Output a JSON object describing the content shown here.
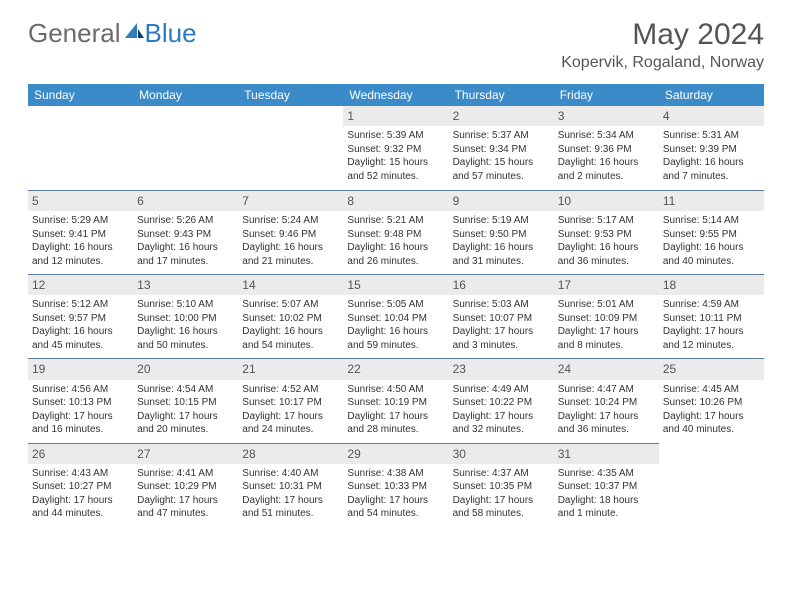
{
  "brand": {
    "word1": "General",
    "word2": "Blue"
  },
  "title": "May 2024",
  "location": "Kopervik, Rogaland, Norway",
  "colors": {
    "header_bg": "#3b8bc9",
    "header_text": "#ffffff",
    "daynum_bg": "#ebebeb",
    "rule": "#5a7ca0",
    "brand_grey": "#6b6b6b",
    "brand_blue": "#2b7cc0"
  },
  "weekdays": [
    "Sunday",
    "Monday",
    "Tuesday",
    "Wednesday",
    "Thursday",
    "Friday",
    "Saturday"
  ],
  "weeks": [
    [
      {
        "n": "",
        "sunrise": "",
        "sunset": "",
        "daylight": ""
      },
      {
        "n": "",
        "sunrise": "",
        "sunset": "",
        "daylight": ""
      },
      {
        "n": "",
        "sunrise": "",
        "sunset": "",
        "daylight": ""
      },
      {
        "n": "1",
        "sunrise": "Sunrise: 5:39 AM",
        "sunset": "Sunset: 9:32 PM",
        "daylight": "Daylight: 15 hours and 52 minutes."
      },
      {
        "n": "2",
        "sunrise": "Sunrise: 5:37 AM",
        "sunset": "Sunset: 9:34 PM",
        "daylight": "Daylight: 15 hours and 57 minutes."
      },
      {
        "n": "3",
        "sunrise": "Sunrise: 5:34 AM",
        "sunset": "Sunset: 9:36 PM",
        "daylight": "Daylight: 16 hours and 2 minutes."
      },
      {
        "n": "4",
        "sunrise": "Sunrise: 5:31 AM",
        "sunset": "Sunset: 9:39 PM",
        "daylight": "Daylight: 16 hours and 7 minutes."
      }
    ],
    [
      {
        "n": "5",
        "sunrise": "Sunrise: 5:29 AM",
        "sunset": "Sunset: 9:41 PM",
        "daylight": "Daylight: 16 hours and 12 minutes."
      },
      {
        "n": "6",
        "sunrise": "Sunrise: 5:26 AM",
        "sunset": "Sunset: 9:43 PM",
        "daylight": "Daylight: 16 hours and 17 minutes."
      },
      {
        "n": "7",
        "sunrise": "Sunrise: 5:24 AM",
        "sunset": "Sunset: 9:46 PM",
        "daylight": "Daylight: 16 hours and 21 minutes."
      },
      {
        "n": "8",
        "sunrise": "Sunrise: 5:21 AM",
        "sunset": "Sunset: 9:48 PM",
        "daylight": "Daylight: 16 hours and 26 minutes."
      },
      {
        "n": "9",
        "sunrise": "Sunrise: 5:19 AM",
        "sunset": "Sunset: 9:50 PM",
        "daylight": "Daylight: 16 hours and 31 minutes."
      },
      {
        "n": "10",
        "sunrise": "Sunrise: 5:17 AM",
        "sunset": "Sunset: 9:53 PM",
        "daylight": "Daylight: 16 hours and 36 minutes."
      },
      {
        "n": "11",
        "sunrise": "Sunrise: 5:14 AM",
        "sunset": "Sunset: 9:55 PM",
        "daylight": "Daylight: 16 hours and 40 minutes."
      }
    ],
    [
      {
        "n": "12",
        "sunrise": "Sunrise: 5:12 AM",
        "sunset": "Sunset: 9:57 PM",
        "daylight": "Daylight: 16 hours and 45 minutes."
      },
      {
        "n": "13",
        "sunrise": "Sunrise: 5:10 AM",
        "sunset": "Sunset: 10:00 PM",
        "daylight": "Daylight: 16 hours and 50 minutes."
      },
      {
        "n": "14",
        "sunrise": "Sunrise: 5:07 AM",
        "sunset": "Sunset: 10:02 PM",
        "daylight": "Daylight: 16 hours and 54 minutes."
      },
      {
        "n": "15",
        "sunrise": "Sunrise: 5:05 AM",
        "sunset": "Sunset: 10:04 PM",
        "daylight": "Daylight: 16 hours and 59 minutes."
      },
      {
        "n": "16",
        "sunrise": "Sunrise: 5:03 AM",
        "sunset": "Sunset: 10:07 PM",
        "daylight": "Daylight: 17 hours and 3 minutes."
      },
      {
        "n": "17",
        "sunrise": "Sunrise: 5:01 AM",
        "sunset": "Sunset: 10:09 PM",
        "daylight": "Daylight: 17 hours and 8 minutes."
      },
      {
        "n": "18",
        "sunrise": "Sunrise: 4:59 AM",
        "sunset": "Sunset: 10:11 PM",
        "daylight": "Daylight: 17 hours and 12 minutes."
      }
    ],
    [
      {
        "n": "19",
        "sunrise": "Sunrise: 4:56 AM",
        "sunset": "Sunset: 10:13 PM",
        "daylight": "Daylight: 17 hours and 16 minutes."
      },
      {
        "n": "20",
        "sunrise": "Sunrise: 4:54 AM",
        "sunset": "Sunset: 10:15 PM",
        "daylight": "Daylight: 17 hours and 20 minutes."
      },
      {
        "n": "21",
        "sunrise": "Sunrise: 4:52 AM",
        "sunset": "Sunset: 10:17 PM",
        "daylight": "Daylight: 17 hours and 24 minutes."
      },
      {
        "n": "22",
        "sunrise": "Sunrise: 4:50 AM",
        "sunset": "Sunset: 10:19 PM",
        "daylight": "Daylight: 17 hours and 28 minutes."
      },
      {
        "n": "23",
        "sunrise": "Sunrise: 4:49 AM",
        "sunset": "Sunset: 10:22 PM",
        "daylight": "Daylight: 17 hours and 32 minutes."
      },
      {
        "n": "24",
        "sunrise": "Sunrise: 4:47 AM",
        "sunset": "Sunset: 10:24 PM",
        "daylight": "Daylight: 17 hours and 36 minutes."
      },
      {
        "n": "25",
        "sunrise": "Sunrise: 4:45 AM",
        "sunset": "Sunset: 10:26 PM",
        "daylight": "Daylight: 17 hours and 40 minutes."
      }
    ],
    [
      {
        "n": "26",
        "sunrise": "Sunrise: 4:43 AM",
        "sunset": "Sunset: 10:27 PM",
        "daylight": "Daylight: 17 hours and 44 minutes."
      },
      {
        "n": "27",
        "sunrise": "Sunrise: 4:41 AM",
        "sunset": "Sunset: 10:29 PM",
        "daylight": "Daylight: 17 hours and 47 minutes."
      },
      {
        "n": "28",
        "sunrise": "Sunrise: 4:40 AM",
        "sunset": "Sunset: 10:31 PM",
        "daylight": "Daylight: 17 hours and 51 minutes."
      },
      {
        "n": "29",
        "sunrise": "Sunrise: 4:38 AM",
        "sunset": "Sunset: 10:33 PM",
        "daylight": "Daylight: 17 hours and 54 minutes."
      },
      {
        "n": "30",
        "sunrise": "Sunrise: 4:37 AM",
        "sunset": "Sunset: 10:35 PM",
        "daylight": "Daylight: 17 hours and 58 minutes."
      },
      {
        "n": "31",
        "sunrise": "Sunrise: 4:35 AM",
        "sunset": "Sunset: 10:37 PM",
        "daylight": "Daylight: 18 hours and 1 minute."
      },
      {
        "n": "",
        "sunrise": "",
        "sunset": "",
        "daylight": ""
      }
    ]
  ]
}
